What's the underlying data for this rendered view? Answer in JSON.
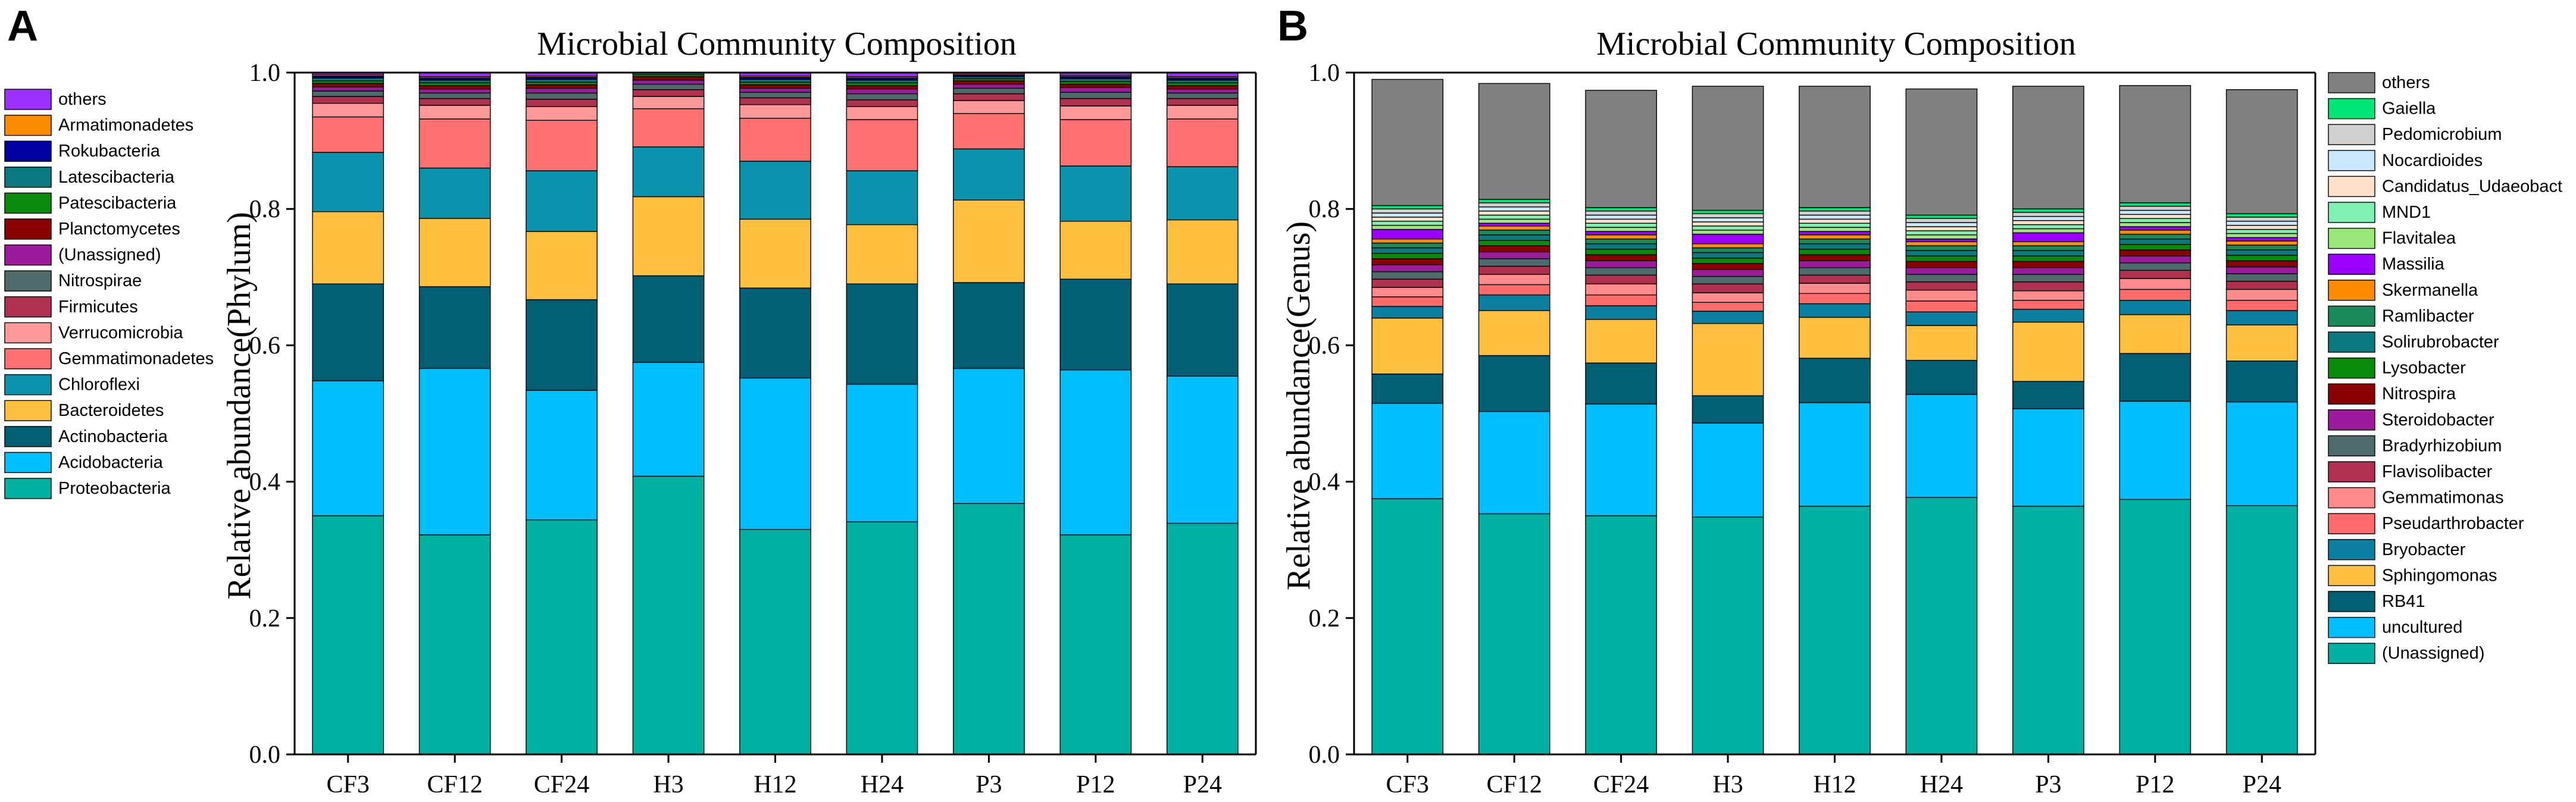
{
  "chart_data": [
    {
      "panel": "A",
      "type": "bar",
      "stacked": true,
      "title": "Microbial Community Composition",
      "xlabel": "",
      "ylabel": "Relative abundance(Phylum)",
      "ylim": [
        0,
        1.0
      ],
      "yticks": [
        "0.0",
        "0.2",
        "0.4",
        "0.6",
        "0.8",
        "1.0"
      ],
      "categories": [
        "CF3",
        "CF12",
        "CF24",
        "H3",
        "H12",
        "H24",
        "P3",
        "P12",
        "P24"
      ],
      "legend_placement": "left",
      "series": [
        {
          "name": "Proteobacteria",
          "color": "#00b0a0",
          "values": [
            0.35,
            0.322,
            0.344,
            0.408,
            0.33,
            0.341,
            0.368,
            0.322,
            0.339
          ]
        },
        {
          "name": "Acidobacteria",
          "color": "#00bfff",
          "values": [
            0.198,
            0.244,
            0.19,
            0.167,
            0.222,
            0.202,
            0.198,
            0.242,
            0.216
          ]
        },
        {
          "name": "Actinobacteria",
          "color": "#005f73",
          "values": [
            0.142,
            0.12,
            0.133,
            0.127,
            0.132,
            0.147,
            0.126,
            0.133,
            0.135
          ]
        },
        {
          "name": "Bacteroidetes",
          "color": "#ffc040",
          "values": [
            0.106,
            0.1,
            0.1,
            0.116,
            0.101,
            0.087,
            0.121,
            0.085,
            0.094
          ]
        },
        {
          "name": "Chloroflexi",
          "color": "#0b93ae",
          "values": [
            0.087,
            0.074,
            0.089,
            0.073,
            0.085,
            0.079,
            0.075,
            0.081,
            0.078
          ]
        },
        {
          "name": "Gemmatimonadetes",
          "color": "#ff7070",
          "values": [
            0.052,
            0.072,
            0.074,
            0.056,
            0.063,
            0.075,
            0.052,
            0.068,
            0.07
          ]
        },
        {
          "name": "Verrucomicrobia",
          "color": "#ff9999",
          "values": [
            0.02,
            0.02,
            0.02,
            0.018,
            0.02,
            0.019,
            0.019,
            0.02,
            0.02
          ]
        },
        {
          "name": "Firmicutes",
          "color": "#b03050",
          "values": [
            0.01,
            0.01,
            0.011,
            0.01,
            0.01,
            0.01,
            0.01,
            0.011,
            0.01
          ]
        },
        {
          "name": "Nitrospirae",
          "color": "#4f6a6a",
          "values": [
            0.008,
            0.008,
            0.009,
            0.008,
            0.008,
            0.009,
            0.008,
            0.009,
            0.008
          ]
        },
        {
          "name": "(Unassigned)",
          "color": "#9c1a9c",
          "values": [
            0.006,
            0.006,
            0.007,
            0.006,
            0.006,
            0.007,
            0.006,
            0.007,
            0.006
          ]
        },
        {
          "name": "Planctomycetes",
          "color": "#8b0000",
          "values": [
            0.005,
            0.005,
            0.005,
            0.005,
            0.005,
            0.005,
            0.005,
            0.005,
            0.005
          ]
        },
        {
          "name": "Patescibacteria",
          "color": "#0a8a0a",
          "values": [
            0.004,
            0.004,
            0.004,
            0.003,
            0.004,
            0.004,
            0.003,
            0.004,
            0.004
          ]
        },
        {
          "name": "Latescibacteria",
          "color": "#0a7a80",
          "values": [
            0.004,
            0.004,
            0.004,
            0.003,
            0.004,
            0.004,
            0.003,
            0.004,
            0.004
          ]
        },
        {
          "name": "Rokubacteria",
          "color": "#0000a0",
          "values": [
            0.003,
            0.003,
            0.003,
            0.003,
            0.003,
            0.003,
            0.003,
            0.003,
            0.003
          ]
        },
        {
          "name": "Armatimonadetes",
          "color": "#ff8c00",
          "values": [
            0.002,
            0.002,
            0.002,
            0.002,
            0.002,
            0.002,
            0.002,
            0.002,
            0.002
          ]
        },
        {
          "name": "others",
          "color": "#9b30ff",
          "values": [
            0.003,
            0.006,
            0.005,
            0.003,
            0.005,
            0.006,
            0.001,
            0.004,
            0.006
          ]
        }
      ]
    },
    {
      "panel": "B",
      "type": "bar",
      "stacked": true,
      "title": "Microbial Community Composition",
      "xlabel": "",
      "ylabel": "Relative abundance(Genus)",
      "ylim": [
        0,
        1.0
      ],
      "yticks": [
        "0.0",
        "0.2",
        "0.4",
        "0.6",
        "0.8",
        "1.0"
      ],
      "categories": [
        "CF3",
        "CF12",
        "CF24",
        "H3",
        "H12",
        "H24",
        "P3",
        "P12",
        "P24"
      ],
      "legend_placement": "right",
      "series": [
        {
          "name": "(Unassigned)",
          "color": "#00b0a0",
          "values": [
            0.375,
            0.353,
            0.35,
            0.348,
            0.364,
            0.377,
            0.364,
            0.374,
            0.365
          ]
        },
        {
          "name": "uncultured",
          "color": "#00bfff",
          "values": [
            0.14,
            0.15,
            0.164,
            0.138,
            0.152,
            0.151,
            0.143,
            0.144,
            0.152
          ]
        },
        {
          "name": "RB41",
          "color": "#005f73",
          "values": [
            0.043,
            0.082,
            0.06,
            0.04,
            0.065,
            0.05,
            0.04,
            0.07,
            0.06
          ]
        },
        {
          "name": "Sphingomonas",
          "color": "#ffc040",
          "values": [
            0.082,
            0.066,
            0.064,
            0.106,
            0.06,
            0.051,
            0.087,
            0.057,
            0.053
          ]
        },
        {
          "name": "Bryobacter",
          "color": "#0b7fa0",
          "values": [
            0.017,
            0.023,
            0.02,
            0.018,
            0.02,
            0.02,
            0.019,
            0.021,
            0.021
          ]
        },
        {
          "name": "Pseudarthrobacter",
          "color": "#ff6b6b",
          "values": [
            0.014,
            0.015,
            0.016,
            0.013,
            0.015,
            0.016,
            0.013,
            0.016,
            0.015
          ]
        },
        {
          "name": "Gemmatimonas",
          "color": "#ff8a8a",
          "values": [
            0.014,
            0.015,
            0.016,
            0.014,
            0.015,
            0.016,
            0.014,
            0.016,
            0.016
          ]
        },
        {
          "name": "Flavisolibacter",
          "color": "#b03050",
          "values": [
            0.012,
            0.012,
            0.013,
            0.013,
            0.012,
            0.012,
            0.013,
            0.012,
            0.012
          ]
        },
        {
          "name": "Bradyrhizobium",
          "color": "#4f6a6a",
          "values": [
            0.011,
            0.011,
            0.011,
            0.011,
            0.011,
            0.011,
            0.011,
            0.011,
            0.011
          ]
        },
        {
          "name": "Steroidobacter",
          "color": "#9c1a9c",
          "values": [
            0.01,
            0.01,
            0.01,
            0.01,
            0.01,
            0.01,
            0.01,
            0.01,
            0.01
          ]
        },
        {
          "name": "Nitrospira",
          "color": "#8b0000",
          "values": [
            0.009,
            0.009,
            0.009,
            0.009,
            0.009,
            0.009,
            0.009,
            0.009,
            0.009
          ]
        },
        {
          "name": "Lysobacter",
          "color": "#0a8a0a",
          "values": [
            0.008,
            0.008,
            0.008,
            0.008,
            0.008,
            0.008,
            0.008,
            0.008,
            0.008
          ]
        },
        {
          "name": "Solirubrobacter",
          "color": "#0a7a80",
          "values": [
            0.008,
            0.008,
            0.008,
            0.008,
            0.008,
            0.008,
            0.008,
            0.008,
            0.008
          ]
        },
        {
          "name": "Ramlibacter",
          "color": "#1a8a5a",
          "values": [
            0.007,
            0.007,
            0.007,
            0.007,
            0.007,
            0.007,
            0.007,
            0.007,
            0.007
          ]
        },
        {
          "name": "Skermanella",
          "color": "#ff8c00",
          "values": [
            0.006,
            0.006,
            0.006,
            0.006,
            0.006,
            0.006,
            0.006,
            0.006,
            0.006
          ]
        },
        {
          "name": "Massilia",
          "color": "#9b00ff",
          "values": [
            0.014,
            0.004,
            0.005,
            0.014,
            0.005,
            0.004,
            0.013,
            0.005,
            0.005
          ]
        },
        {
          "name": "Flavitalea",
          "color": "#9be87a",
          "values": [
            0.006,
            0.006,
            0.006,
            0.006,
            0.006,
            0.006,
            0.006,
            0.006,
            0.006
          ]
        },
        {
          "name": "MND1",
          "color": "#7ff0b0",
          "values": [
            0.006,
            0.006,
            0.006,
            0.006,
            0.006,
            0.006,
            0.006,
            0.006,
            0.006
          ]
        },
        {
          "name": "Candidatus_Udaeobact",
          "color": "#ffe0c8",
          "values": [
            0.006,
            0.006,
            0.006,
            0.006,
            0.006,
            0.006,
            0.006,
            0.006,
            0.006
          ]
        },
        {
          "name": "Nocardioides",
          "color": "#c8e8ff",
          "values": [
            0.006,
            0.006,
            0.006,
            0.006,
            0.006,
            0.006,
            0.006,
            0.006,
            0.006
          ]
        },
        {
          "name": "Pedomicrobium",
          "color": "#d0d0d0",
          "values": [
            0.006,
            0.006,
            0.006,
            0.006,
            0.006,
            0.006,
            0.006,
            0.006,
            0.006
          ]
        },
        {
          "name": "Gaiella",
          "color": "#00e676",
          "values": [
            0.005,
            0.005,
            0.005,
            0.005,
            0.005,
            0.005,
            0.005,
            0.005,
            0.005
          ]
        },
        {
          "name": "others",
          "color": "#808080",
          "values": [
            0.185,
            0.17,
            0.172,
            0.182,
            0.178,
            0.185,
            0.18,
            0.172,
            0.182
          ]
        }
      ]
    }
  ]
}
